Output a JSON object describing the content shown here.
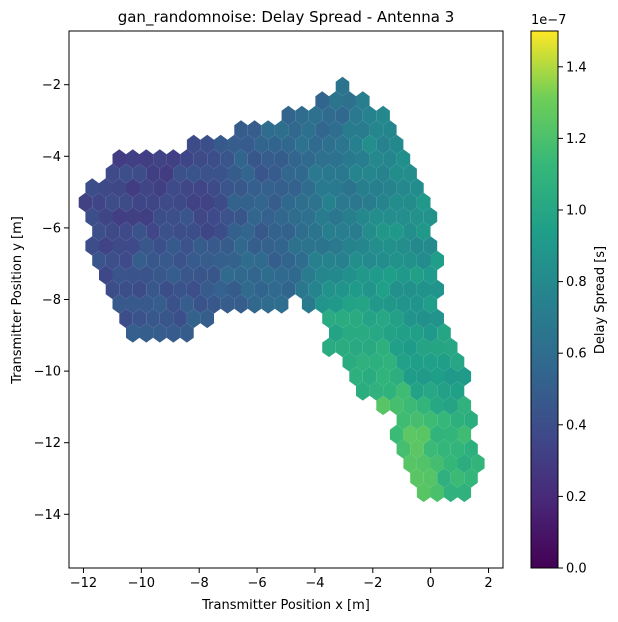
{
  "chart_data": {
    "type": "heatmap",
    "title": "gan_randomnoise: Delay Spread - Antenna 3",
    "xlabel": "Transmitter Position x [m]",
    "ylabel": "Transmitter Position y [m]",
    "xlim": [
      -12.5,
      2.5
    ],
    "ylim": [
      -15.5,
      -0.5
    ],
    "xticks": [
      -12,
      -10,
      -8,
      -6,
      -4,
      -2,
      0,
      2
    ],
    "yticks": [
      -2,
      -4,
      -6,
      -8,
      -10,
      -12,
      -14
    ],
    "colorbar": {
      "label": "Delay Spread [s]",
      "multiplier": "1e−7",
      "range": [
        0,
        1.5
      ],
      "ticks": [
        0.0,
        0.2,
        0.4,
        0.6,
        0.8,
        1.0,
        1.2,
        1.4
      ],
      "colormap": "viridis"
    },
    "region_polygon": [
      [
        -12.0,
        -5.2
      ],
      [
        -11.0,
        -4.0
      ],
      [
        -10.0,
        -4.0
      ],
      [
        -9.5,
        -4.0
      ],
      [
        -8.0,
        -3.5
      ],
      [
        -7.0,
        -3.3
      ],
      [
        -6.0,
        -3.2
      ],
      [
        -5.0,
        -2.8
      ],
      [
        -4.0,
        -2.4
      ],
      [
        -3.2,
        -2.0
      ],
      [
        -2.5,
        -2.1
      ],
      [
        -1.5,
        -2.8
      ],
      [
        -0.8,
        -3.5
      ],
      [
        -0.4,
        -4.5
      ],
      [
        0.1,
        -5.5
      ],
      [
        0.2,
        -6.5
      ],
      [
        0.4,
        -7.2
      ],
      [
        0.3,
        -8.0
      ],
      [
        0.6,
        -8.8
      ],
      [
        1.0,
        -9.5
      ],
      [
        1.3,
        -10.5
      ],
      [
        1.5,
        -11.5
      ],
      [
        1.8,
        -12.5
      ],
      [
        1.4,
        -13.5
      ],
      [
        0.5,
        -13.6
      ],
      [
        -0.5,
        -13.6
      ],
      [
        -1.1,
        -12.5
      ],
      [
        -1.4,
        -11.2
      ],
      [
        -2.5,
        -10.5
      ],
      [
        -3.5,
        -9.5
      ],
      [
        -3.8,
        -8.6
      ],
      [
        -4.5,
        -8.1
      ],
      [
        -6.0,
        -8.2
      ],
      [
        -7.0,
        -8.3
      ],
      [
        -8.0,
        -8.8
      ],
      [
        -9.0,
        -9.2
      ],
      [
        -10.0,
        -9.2
      ],
      [
        -11.0,
        -8.5
      ],
      [
        -11.5,
        -7.5
      ],
      [
        -11.8,
        -6.5
      ]
    ],
    "value_field": {
      "anchor_points": [
        {
          "x": -10.0,
          "y": -5.0,
          "value": 0.35
        },
        {
          "x": -8.0,
          "y": -5.0,
          "value": 0.38
        },
        {
          "x": -9.0,
          "y": -7.0,
          "value": 0.45
        },
        {
          "x": -6.0,
          "y": -5.0,
          "value": 0.5
        },
        {
          "x": -6.0,
          "y": -7.5,
          "value": 0.55
        },
        {
          "x": -4.0,
          "y": -3.0,
          "value": 0.6
        },
        {
          "x": -3.0,
          "y": -5.0,
          "value": 0.7
        },
        {
          "x": -1.5,
          "y": -4.0,
          "value": 0.8
        },
        {
          "x": -1.0,
          "y": -6.0,
          "value": 0.85
        },
        {
          "x": -0.5,
          "y": -8.0,
          "value": 0.9
        },
        {
          "x": -2.5,
          "y": -9.5,
          "value": 1.05
        },
        {
          "x": 0.0,
          "y": -10.0,
          "value": 0.95
        },
        {
          "x": -1.0,
          "y": -11.5,
          "value": 1.2
        },
        {
          "x": -0.5,
          "y": -12.8,
          "value": 1.25
        },
        {
          "x": 0.8,
          "y": -12.5,
          "value": 1.1
        }
      ]
    }
  }
}
